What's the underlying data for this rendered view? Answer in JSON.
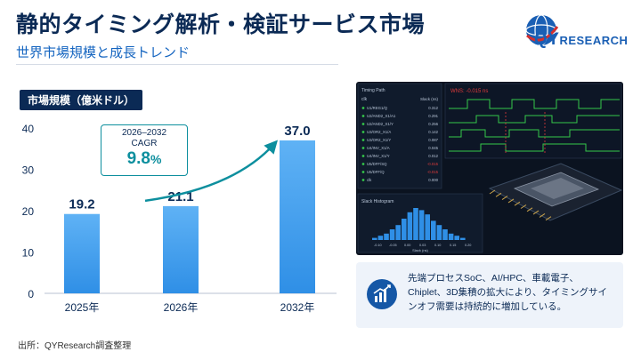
{
  "header": {
    "title": "静的タイミング解析・検証サービス市場",
    "subtitle": "世界市場規模と成長トレンド"
  },
  "logo": {
    "brand_main": "QY",
    "brand_rest": "RESEARCH",
    "colors": {
      "blue": "#1a5fb4",
      "red": "#d32f2f"
    }
  },
  "unit_badge": "市場規模（億米ドル）",
  "cagr": {
    "period": "2026–2032",
    "label": "CAGR",
    "value": "9.8",
    "unit": "%"
  },
  "chart_data": {
    "type": "bar",
    "categories": [
      "2025年",
      "2026年",
      "2032年"
    ],
    "values": [
      19.2,
      21.1,
      37.0
    ],
    "value_labels": [
      "19.2",
      "21.1",
      "37.0"
    ],
    "yticks": [
      "0",
      "10",
      "20",
      "30",
      "40"
    ],
    "ylim": [
      0,
      40
    ],
    "bar_color": "#2f8fe6",
    "bar_color_light": "#5fb2f5",
    "arrow_color": "#0d8f9e",
    "grid": false
  },
  "source": "出所：QYResearch調査整理",
  "panel": {
    "timing_title": "Timing Path",
    "clk": "clk",
    "slack_header": "Slack (ns)",
    "rows": [
      {
        "name": "U1/REG1/Q",
        "slack": "0.312"
      },
      {
        "name": "U2/AND2_X1/A1",
        "slack": "0.291"
      },
      {
        "name": "U2/AND2_X1/Y",
        "slack": "0.256"
      },
      {
        "name": "U3/OR2_X1/A",
        "slack": "0.142"
      },
      {
        "name": "U3/OR2_X1/Y",
        "slack": "0.087"
      },
      {
        "name": "U4/INV_X1/A",
        "slack": "0.045"
      },
      {
        "name": "U4/INV_X1/Y",
        "slack": "0.012"
      },
      {
        "name": "U5/DFF/SQ",
        "slack": "-0.015"
      },
      {
        "name": "U5/DFF/Q",
        "slack": "-0.015"
      },
      {
        "name": "clk",
        "slack": "0.000"
      }
    ],
    "wns": "WNS: -0.015 ns",
    "histogram_title": "Slack Histogram",
    "histogram_bins": [
      1,
      2,
      3,
      5,
      7,
      10,
      13,
      15,
      14,
      12,
      9,
      7,
      5,
      3,
      2,
      1
    ],
    "histogram_ticks": [
      "-0.10",
      "-0.05",
      "0.00",
      "0.03",
      "0.10",
      "0.15",
      "0.20"
    ],
    "histogram_xlabel": "Slack (ns)",
    "colors": {
      "waveform": "#35c84a",
      "waveform_red": "#e23b3b",
      "text": "#b9c6d8"
    }
  },
  "insight": {
    "text": "先端プロセスSoC、AI/HPC、車載電子、Chiplet、3D集積の拡大により、タイミングサインオフ需要は持続的に増加している。",
    "icon": "bar-chart-growth-icon"
  }
}
